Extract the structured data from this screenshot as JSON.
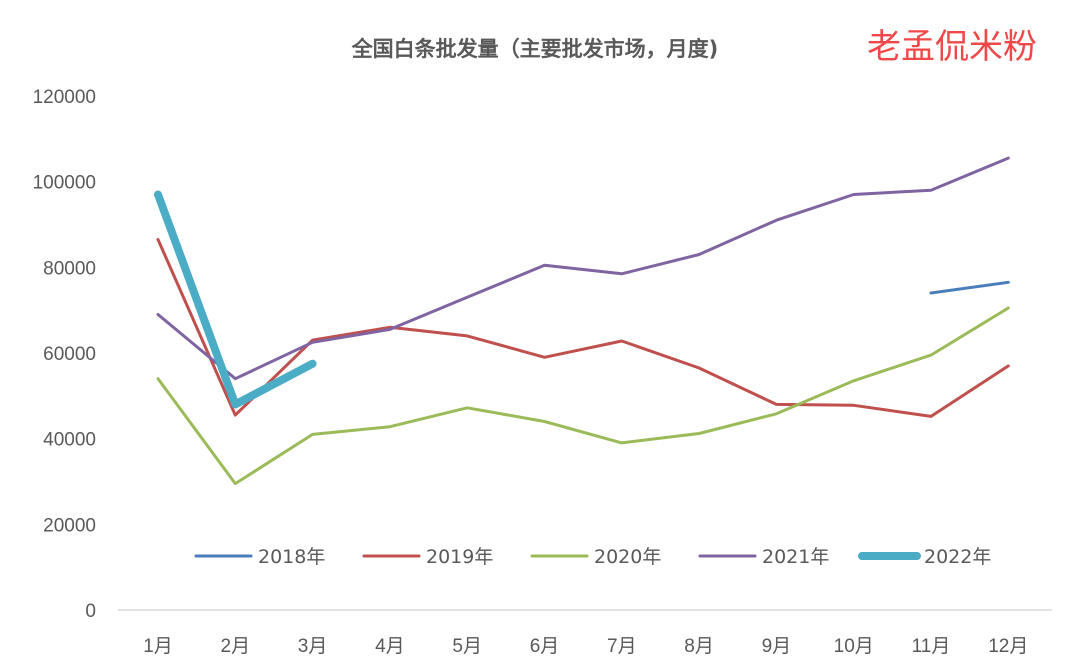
{
  "chart_data": {
    "type": "line",
    "title": "全国白条批发量（主要批发市场，月度)",
    "watermark": "老孟侃米粉",
    "xlabel": "",
    "ylabel": "",
    "categories": [
      "1月",
      "2月",
      "3月",
      "4月",
      "5月",
      "6月",
      "7月",
      "8月",
      "9月",
      "10月",
      "11月",
      "12月"
    ],
    "ylim": [
      0,
      120000
    ],
    "yticks": [
      0,
      20000,
      40000,
      60000,
      80000,
      100000,
      120000
    ],
    "ytick_labels": [
      "0",
      "20000",
      "40000",
      "60000",
      "80000",
      "100000",
      "120000"
    ],
    "grid": false,
    "legend_position": "bottom-inside",
    "series": [
      {
        "name": "2018年",
        "color": "#4a7ebb",
        "values": [
          null,
          null,
          null,
          null,
          null,
          null,
          null,
          null,
          null,
          null,
          74000,
          76500
        ]
      },
      {
        "name": "2019年",
        "color": "#c0504d",
        "values": [
          86500,
          45500,
          63000,
          66000,
          64000,
          59000,
          62800,
          56500,
          48000,
          47800,
          45200,
          57000
        ]
      },
      {
        "name": "2020年",
        "color": "#9bbb59",
        "values": [
          54000,
          29500,
          41000,
          42800,
          47200,
          44000,
          39000,
          41200,
          45800,
          53500,
          59500,
          70500
        ]
      },
      {
        "name": "2021年",
        "color": "#8064a2",
        "values": [
          69000,
          54000,
          62500,
          65500,
          73000,
          80500,
          78500,
          83000,
          91000,
          97000,
          98000,
          105500
        ]
      },
      {
        "name": "2022年",
        "color": "#4bacc6",
        "values": [
          97000,
          48000,
          57500,
          null,
          null,
          null,
          null,
          null,
          null,
          null,
          null,
          null
        ]
      }
    ]
  }
}
